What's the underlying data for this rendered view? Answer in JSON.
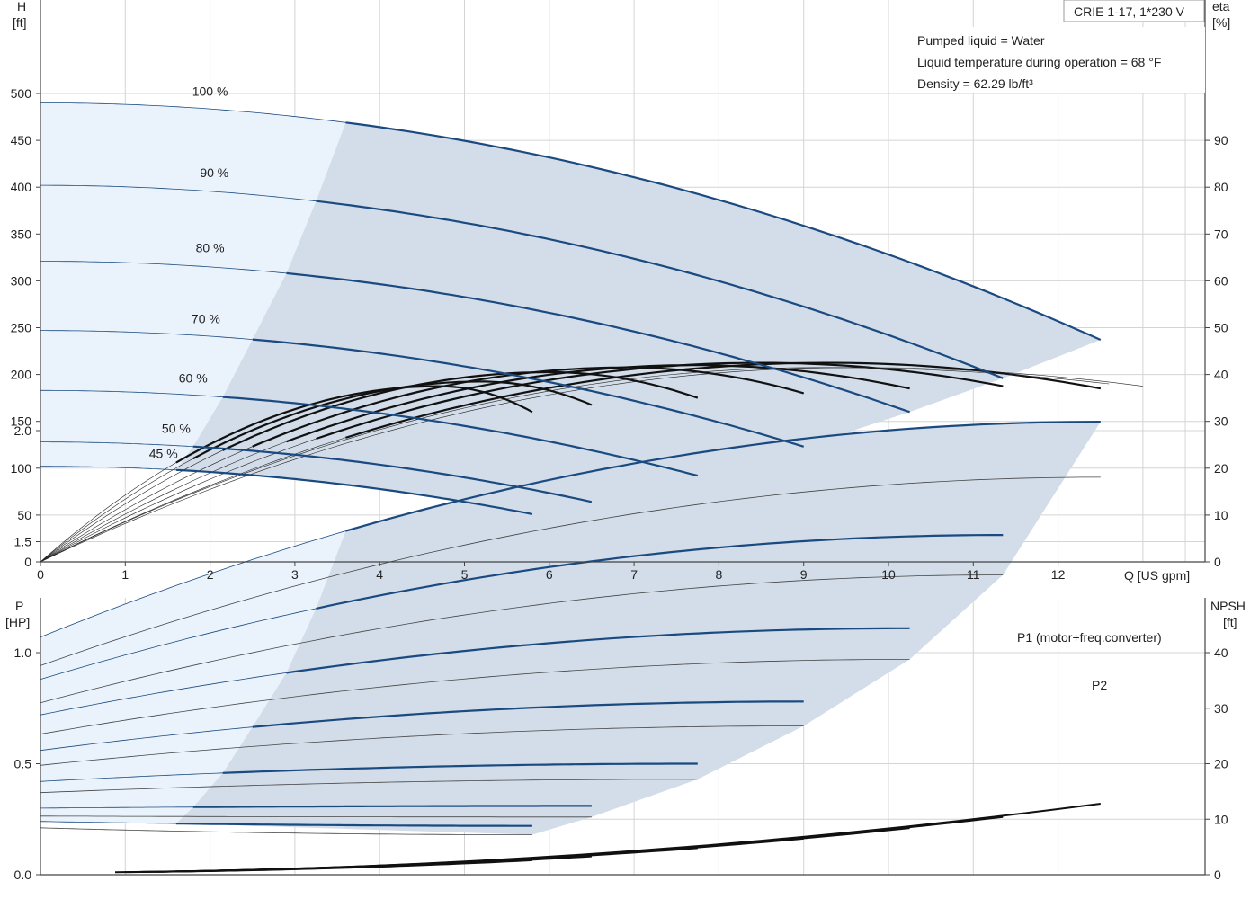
{
  "chart_data": [
    {
      "type": "line",
      "title": "CRIE 1-17, 1*230 V",
      "info": [
        "Pumped liquid = Water",
        "Liquid temperature during operation = 68 °F",
        "Density = 62.29 lb/ft³"
      ],
      "xlabel": "Q [US gpm]",
      "ylabel_left": [
        "H",
        "[ft]"
      ],
      "ylabel_right": [
        "eta",
        "[%]"
      ],
      "xlim": [
        0,
        13
      ],
      "ylim_left": [
        0,
        500
      ],
      "ylim_right": [
        0,
        100
      ],
      "x_ticks": [
        "0",
        "1",
        "2",
        "3",
        "4",
        "5",
        "6",
        "7",
        "8",
        "9",
        "10",
        "11",
        "12"
      ],
      "y_ticks_left": [
        "0",
        "50",
        "100",
        "150",
        "200",
        "250",
        "300",
        "350",
        "400",
        "450",
        "500"
      ],
      "y_ticks_right": [
        "0",
        "10",
        "20",
        "30",
        "40",
        "50",
        "60",
        "70",
        "80",
        "90"
      ],
      "grid": true,
      "head_curves": [
        {
          "name": "100 %",
          "h0": 490,
          "qmax": 12.5,
          "hmax": 237,
          "qthick": 3.6
        },
        {
          "name": "90 %",
          "h0": 402,
          "qmax": 11.35,
          "hmax": 196,
          "qthick": 3.25
        },
        {
          "name": "80 %",
          "h0": 321,
          "qmax": 10.25,
          "hmax": 160,
          "qthick": 2.9
        },
        {
          "name": "70 %",
          "h0": 247,
          "qmax": 9.0,
          "hmax": 123,
          "qthick": 2.5
        },
        {
          "name": "60 %",
          "h0": 183,
          "qmax": 7.75,
          "hmax": 92,
          "qthick": 2.15
        },
        {
          "name": "50 %",
          "h0": 128,
          "qmax": 6.5,
          "hmax": 64,
          "qthick": 1.8
        },
        {
          "name": "45 %",
          "h0": 102,
          "qmax": 5.8,
          "hmax": 51,
          "qthick": 1.6
        }
      ],
      "eta_curves": [
        {
          "qmax": 12.5,
          "peak": 42.5,
          "qpeak": 9.3,
          "end": 37
        },
        {
          "qmax": 11.35,
          "peak": 42.5,
          "qpeak": 8.5,
          "end": 37.5
        },
        {
          "qmax": 10.25,
          "peak": 42,
          "qpeak": 7.7,
          "end": 37
        },
        {
          "qmax": 9.0,
          "peak": 41.5,
          "qpeak": 6.9,
          "end": 36
        },
        {
          "qmax": 7.75,
          "peak": 40.5,
          "qpeak": 6.0,
          "end": 35
        },
        {
          "qmax": 6.5,
          "peak": 38.5,
          "qpeak": 5.2,
          "end": 33.5
        },
        {
          "qmax": 5.8,
          "peak": 37.5,
          "qpeak": 4.7,
          "end": 32
        }
      ]
    },
    {
      "type": "line",
      "xlim": [
        0,
        13
      ],
      "ylabel_left": [
        "P",
        "[HP]"
      ],
      "ylabel_right": [
        "NPSH",
        "[ft]"
      ],
      "ylim_left": [
        0,
        2.2
      ],
      "ylim_right": [
        0,
        44
      ],
      "y_ticks_left": [
        "0.0",
        "0.5",
        "1.0",
        "1.5",
        "2.0"
      ],
      "y_ticks_right": [
        "0",
        "10",
        "20",
        "30",
        "40"
      ],
      "series_labels": [
        "P1 (motor+freq.converter)",
        "P2"
      ],
      "power_curves": [
        {
          "qmax": 12.5,
          "p1_0": 1.07,
          "p1_end": 2.04,
          "p2_end": 1.79,
          "qthick": 3.6
        },
        {
          "qmax": 11.35,
          "p1_0": 0.88,
          "p1_end": 1.53,
          "p2_end": 1.35,
          "qthick": 3.25
        },
        {
          "qmax": 10.25,
          "p1_0": 0.72,
          "p1_end": 1.11,
          "p2_end": 0.97,
          "qthick": 2.9
        },
        {
          "qmax": 9.0,
          "p1_0": 0.56,
          "p1_end": 0.78,
          "p2_end": 0.67,
          "qthick": 2.5
        },
        {
          "qmax": 7.75,
          "p1_0": 0.42,
          "p1_end": 0.5,
          "p2_end": 0.43,
          "qthick": 2.15
        },
        {
          "qmax": 6.5,
          "p1_0": 0.3,
          "p1_end": 0.31,
          "p2_end": 0.26,
          "qthick": 1.8
        },
        {
          "qmax": 5.8,
          "p1_0": 0.24,
          "p1_end": 0.22,
          "p2_end": 0.18,
          "qthick": 1.6
        }
      ],
      "npsh_curves": [
        {
          "qmax": 12.5,
          "end": 12.8
        },
        {
          "qmax": 11.35,
          "end": 10.4
        },
        {
          "qmax": 10.25,
          "end": 8.4
        },
        {
          "qmax": 9.0,
          "end": 6.5
        },
        {
          "qmax": 7.75,
          "end": 4.8
        },
        {
          "qmax": 6.5,
          "end": 3.3
        },
        {
          "qmax": 5.8,
          "end": 2.6
        }
      ]
    }
  ],
  "colors": {
    "curve": "#1a4a80",
    "label_blue": "#1a4a80",
    "envelope": "#d2dde9",
    "envelope_light": "#eaf3fc",
    "grid": "#d4d4d4"
  }
}
